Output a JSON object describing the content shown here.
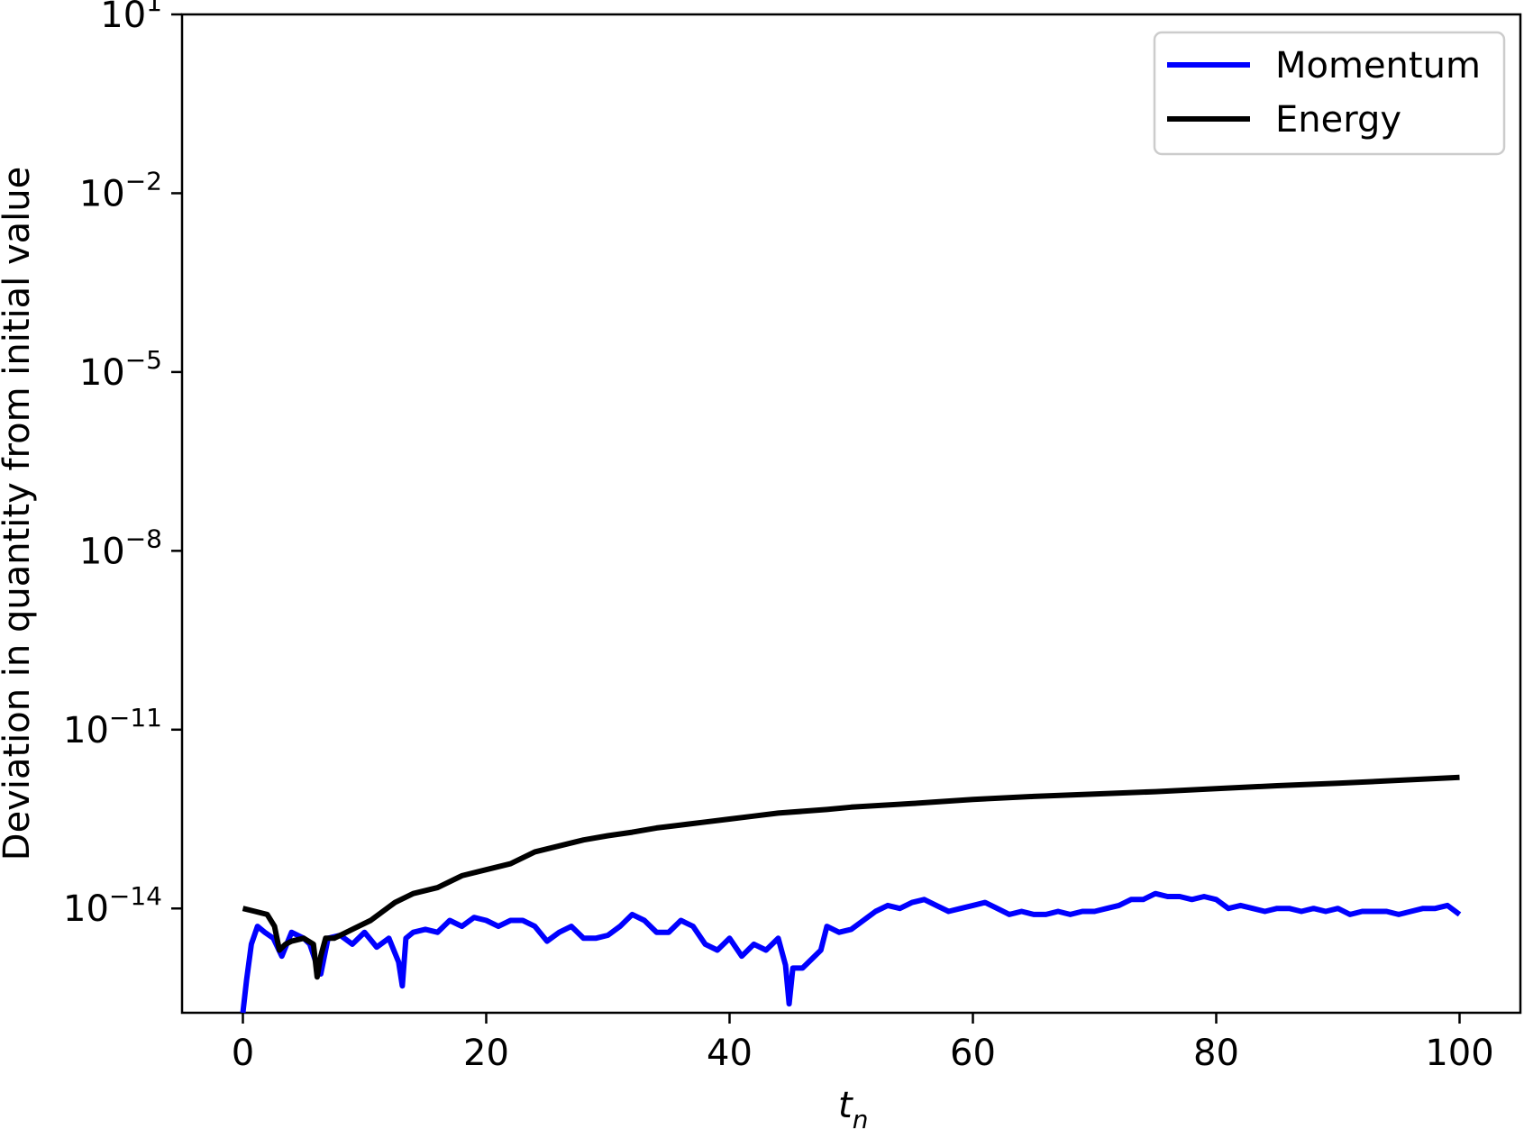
{
  "chart_data": {
    "type": "line",
    "title": "",
    "xlabel": "t",
    "xlabel_subscript": "n",
    "ylabel": "Deviation in quantity from initial value",
    "xlim": [
      -5,
      105
    ],
    "ylim": [
      -15.75,
      1
    ],
    "yscale": "log",
    "x_ticks": [
      0,
      20,
      40,
      60,
      80,
      100
    ],
    "x_tick_labels": [
      "0",
      "20",
      "40",
      "60",
      "80",
      "100"
    ],
    "y_ticks": [
      1,
      -2,
      -5,
      -8,
      -11,
      -14
    ],
    "y_tick_labels": [
      {
        "base": "10",
        "exp": "1"
      },
      {
        "base": "10",
        "exp": "−2"
      },
      {
        "base": "10",
        "exp": "−5"
      },
      {
        "base": "10",
        "exp": "−8"
      },
      {
        "base": "10",
        "exp": "−11"
      },
      {
        "base": "10",
        "exp": "−14"
      }
    ],
    "grid": false,
    "legend_position": "top-right",
    "series": [
      {
        "name": "Momentum",
        "color": "#0000ff",
        "x": [
          0,
          0.3,
          0.7,
          1.2,
          1.8,
          2.5,
          3.2,
          4.0,
          5.0,
          5.5,
          6.0,
          6.4,
          7.0,
          8.0,
          9.0,
          10.0,
          11.0,
          12.0,
          12.8,
          13.1,
          13.4,
          14.0,
          15.0,
          16.0,
          17.0,
          18.0,
          19.0,
          20.0,
          21.0,
          22.0,
          23.0,
          24.0,
          25.0,
          26.0,
          27.0,
          28.0,
          29.0,
          30.0,
          31.0,
          32.0,
          33.0,
          34.0,
          35.0,
          36.0,
          37.0,
          38.0,
          39.0,
          40.0,
          41.0,
          42.0,
          43.0,
          44.0,
          44.6,
          44.9,
          45.2,
          46.0,
          47.0,
          47.5,
          48.0,
          49.0,
          50.0,
          51.0,
          52.0,
          53.0,
          54.0,
          55.0,
          56.0,
          57.0,
          58.0,
          59.0,
          60.0,
          61.0,
          62.0,
          63.0,
          64.0,
          65.0,
          66.0,
          67.0,
          68.0,
          69.0,
          70.0,
          71.0,
          72.0,
          73.0,
          74.0,
          75.0,
          76.0,
          77.0,
          78.0,
          79.0,
          80.0,
          81.0,
          82.0,
          83.0,
          84.0,
          85.0,
          86.0,
          87.0,
          88.0,
          89.0,
          90.0,
          91.0,
          92.0,
          93.0,
          94.0,
          95.0,
          96.0,
          97.0,
          98.0,
          99.0,
          100.0
        ],
        "y": [
          -15.75,
          -15.2,
          -14.6,
          -14.3,
          -14.4,
          -14.5,
          -14.8,
          -14.4,
          -14.5,
          -14.6,
          -14.9,
          -15.1,
          -14.5,
          -14.45,
          -14.6,
          -14.4,
          -14.65,
          -14.5,
          -14.9,
          -15.3,
          -14.5,
          -14.4,
          -14.35,
          -14.4,
          -14.2,
          -14.3,
          -14.15,
          -14.2,
          -14.3,
          -14.2,
          -14.2,
          -14.3,
          -14.55,
          -14.4,
          -14.3,
          -14.5,
          -14.5,
          -14.45,
          -14.3,
          -14.1,
          -14.2,
          -14.4,
          -14.4,
          -14.2,
          -14.3,
          -14.6,
          -14.7,
          -14.5,
          -14.8,
          -14.6,
          -14.7,
          -14.5,
          -14.95,
          -15.6,
          -15.0,
          -15.0,
          -14.8,
          -14.7,
          -14.3,
          -14.4,
          -14.35,
          -14.2,
          -14.05,
          -13.95,
          -14.0,
          -13.9,
          -13.85,
          -13.95,
          -14.05,
          -14.0,
          -13.95,
          -13.9,
          -14.0,
          -14.1,
          -14.05,
          -14.1,
          -14.1,
          -14.05,
          -14.1,
          -14.05,
          -14.05,
          -14.0,
          -13.95,
          -13.85,
          -13.85,
          -13.75,
          -13.8,
          -13.8,
          -13.85,
          -13.8,
          -13.85,
          -14.0,
          -13.95,
          -14.0,
          -14.05,
          -14.0,
          -14.0,
          -14.05,
          -14.0,
          -14.05,
          -14.0,
          -14.1,
          -14.05,
          -14.05,
          -14.05,
          -14.1,
          -14.05,
          -14.0,
          -14.0,
          -13.95,
          -14.1
        ]
      },
      {
        "name": "Energy",
        "color": "#000000",
        "x": [
          0,
          1.0,
          2.0,
          2.6,
          3.0,
          3.5,
          4.0,
          5.0,
          5.8,
          6.1,
          6.4,
          6.8,
          7.5,
          8.5,
          9.5,
          10.5,
          11.5,
          12.5,
          14,
          16,
          18,
          20,
          22,
          24,
          26,
          28,
          30,
          32,
          34,
          36,
          38,
          40,
          42,
          44,
          46,
          48,
          50,
          55,
          60,
          65,
          70,
          75,
          80,
          85,
          90,
          95,
          100
        ],
        "y": [
          -14.0,
          -14.05,
          -14.1,
          -14.3,
          -14.7,
          -14.6,
          -14.55,
          -14.5,
          -14.6,
          -15.15,
          -14.8,
          -14.5,
          -14.5,
          -14.4,
          -14.3,
          -14.2,
          -14.05,
          -13.9,
          -13.75,
          -13.65,
          -13.45,
          -13.35,
          -13.25,
          -13.05,
          -12.95,
          -12.85,
          -12.78,
          -12.72,
          -12.65,
          -12.6,
          -12.55,
          -12.5,
          -12.45,
          -12.4,
          -12.37,
          -12.34,
          -12.3,
          -12.24,
          -12.17,
          -12.12,
          -12.08,
          -12.04,
          -11.99,
          -11.94,
          -11.9,
          -11.85,
          -11.8
        ]
      }
    ]
  }
}
